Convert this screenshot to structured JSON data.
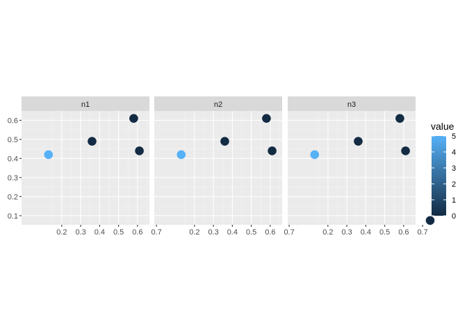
{
  "chart_data": {
    "type": "scatter",
    "facets": [
      "n1",
      "n2",
      "n3"
    ],
    "x": [
      0.13,
      0.36,
      0.58,
      0.61,
      0.74
    ],
    "y": [
      0.42,
      0.49,
      0.61,
      0.44,
      0.075
    ],
    "value": [
      5,
      0,
      0,
      0,
      0
    ],
    "xlim": [
      0.1,
      0.76
    ],
    "ylim": [
      0.05,
      0.7
    ],
    "xticks": [
      0.2,
      0.3,
      0.4,
      0.5,
      0.6,
      0.7
    ],
    "xtick_labels": [
      "0.2",
      "0.3",
      "0.4",
      "0.5",
      "0.6",
      "0.7"
    ],
    "yticks": [
      0.1,
      0.2,
      0.3,
      0.4,
      0.5,
      0.6
    ],
    "ytick_labels": [
      "0.1",
      "0.2",
      "0.3",
      "0.4",
      "0.5",
      "0.6"
    ],
    "grid": true,
    "legend": {
      "title": "value",
      "placement": "right",
      "breaks": [
        0,
        1,
        2,
        3,
        4,
        5
      ],
      "labels": [
        "0",
        "1",
        "2",
        "3",
        "4",
        "5"
      ],
      "color_low": "#132B43",
      "color_high": "#56B1F7"
    }
  }
}
